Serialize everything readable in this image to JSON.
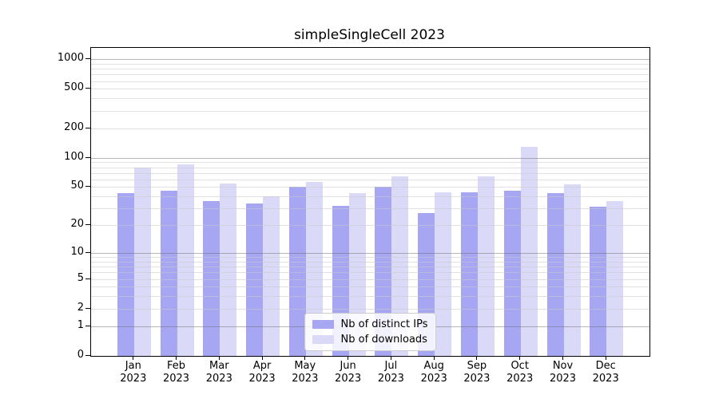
{
  "chart_data": {
    "type": "bar",
    "title": "simpleSingleCell 2023",
    "categories": [
      "Jan",
      "Feb",
      "Mar",
      "Apr",
      "May",
      "Jun",
      "Jul",
      "Aug",
      "Sep",
      "Oct",
      "Nov",
      "Dec"
    ],
    "year_label": "2023",
    "series": [
      {
        "name": "Nb of distinct IPs",
        "color": "#a6a6f3",
        "values": [
          43,
          46,
          36,
          34,
          50,
          32,
          50,
          27,
          44,
          46,
          43,
          31
        ]
      },
      {
        "name": "Nb of downloads",
        "color": "#dadaf8",
        "values": [
          80,
          86,
          54,
          40,
          56,
          43,
          64,
          44,
          65,
          130,
          53,
          36
        ]
      }
    ],
    "yscale": "log10(value+1)",
    "ylim": [
      0,
      1300
    ],
    "ytick_values": [
      1000,
      500,
      200,
      100,
      50,
      20,
      10,
      5,
      2,
      1,
      0
    ],
    "ytick_labels": [
      "1000",
      "500",
      "200",
      "100",
      "50",
      "20",
      "10",
      "5",
      "2",
      "1",
      "0"
    ],
    "grid": "horizontal major+minor, drawn over bars",
    "legend_position": "lower center",
    "colors": {
      "background": "#ffffff",
      "axis": "#000000",
      "text": "#000000",
      "major_grid": "rgba(110,110,110,0.5)",
      "minor_grid": "rgba(200,200,200,0.55)",
      "legend_border": "#cccccc"
    }
  }
}
